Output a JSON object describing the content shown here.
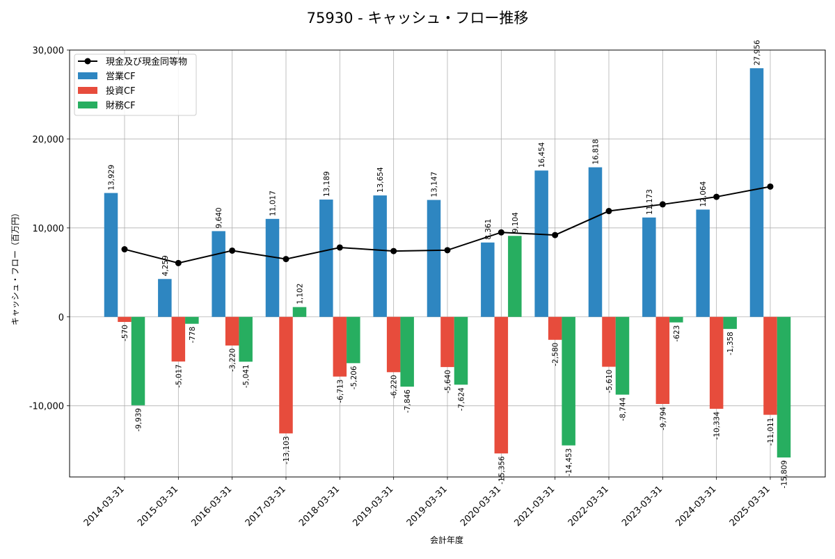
{
  "chart_data": {
    "type": "bar",
    "title": "75930 - キャッシュ・フロー推移",
    "xlabel": "会計年度",
    "ylabel": "キャッシュ・フロー（百万円）",
    "ylim": [
      -18000,
      30000
    ],
    "yticks": [
      -10000,
      0,
      10000,
      20000,
      30000
    ],
    "ytick_labels": [
      "-10,000",
      "0",
      "10,000",
      "20,000",
      "30,000"
    ],
    "grid": true,
    "legend_position": "top-left",
    "categories": [
      "2014-03-31",
      "2015-03-31",
      "2016-03-31",
      "2017-03-31",
      "2018-03-31",
      "2019-03-31",
      "2019-03-31",
      "2020-03-31",
      "2021-03-31",
      "2022-03-31",
      "2023-03-31",
      "2024-03-31",
      "2025-03-31"
    ],
    "series": [
      {
        "name": "営業CF",
        "kind": "bar",
        "color": "#2e86c1",
        "values": [
          13929,
          4259,
          9640,
          11017,
          13189,
          13654,
          13147,
          8361,
          16454,
          16818,
          11173,
          12064,
          27956
        ],
        "labels": [
          "13,929",
          "4,259",
          "9,640",
          "11,017",
          "13,189",
          "13,654",
          "13,147",
          "8,361",
          "16,454",
          "16,818",
          "11,173",
          "12,064",
          "27,956"
        ]
      },
      {
        "name": "投資CF",
        "kind": "bar",
        "color": "#e74c3c",
        "values": [
          -570,
          -5017,
          -3220,
          -13103,
          -6713,
          -6220,
          -5640,
          -15356,
          -2580,
          -5610,
          -9794,
          -10334,
          -11011
        ],
        "labels": [
          "-570",
          "-5,017",
          "-3,220",
          "-13,103",
          "-6,713",
          "-6,220",
          "-5,640",
          "-15,356",
          "-2,580",
          "-5,610",
          "-9,794",
          "-10,334",
          "-11,011"
        ]
      },
      {
        "name": "財務CF",
        "kind": "bar",
        "color": "#27ae60",
        "values": [
          -9939,
          -778,
          -5041,
          1102,
          -5206,
          -7846,
          -7624,
          9104,
          -14453,
          -8744,
          -623,
          -1358,
          -15809
        ],
        "labels": [
          "-9,939",
          "-778",
          "-5,041",
          "1,102",
          "-5,206",
          "-7,846",
          "-7,624",
          "9,104",
          "-14,453",
          "-8,744",
          "-623",
          "-1,358",
          "-15,809"
        ]
      },
      {
        "name": "現金及び現金同等物",
        "kind": "line",
        "color": "#000000",
        "values": [
          7600,
          6050,
          7450,
          6500,
          7800,
          7400,
          7500,
          9500,
          9200,
          11900,
          12650,
          13500,
          14650
        ]
      }
    ]
  }
}
